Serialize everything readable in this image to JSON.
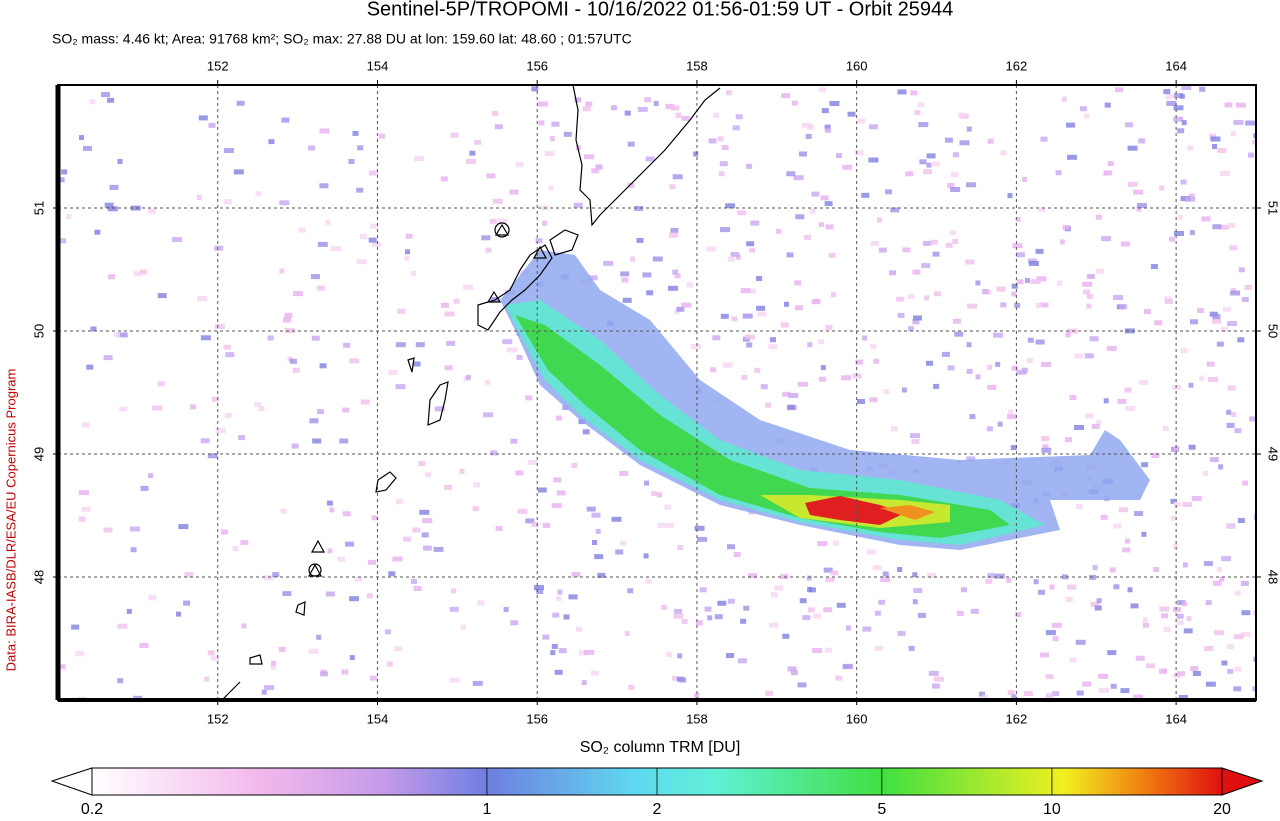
{
  "chart_data": {
    "type": "map",
    "title": "Sentinel-5P/TROPOMI - 10/16/2022 01:56-01:59 UT - Orbit 25944",
    "subtitle": "SO₂ mass: 4.46 kt; Area: 91768 km²; SO₂ max: 27.88 DU at lon: 159.60 lat: 48.60 ; 01:57UTC",
    "credit": "Data: BIRA-IASB/DLR/ESA/EU Copernicus Program",
    "xlim": [
      150,
      165
    ],
    "xticks": [
      152,
      154,
      156,
      158,
      160,
      162,
      164
    ],
    "ylim": [
      47,
      52
    ],
    "yticks": [
      48,
      49,
      50,
      51
    ],
    "grid": true,
    "colorbar": {
      "label": "SO₂ column TRM [DU]",
      "lim": [
        0.2,
        20
      ],
      "log": true,
      "ticks": [
        0.2,
        1,
        2,
        5,
        10,
        20
      ]
    }
  }
}
